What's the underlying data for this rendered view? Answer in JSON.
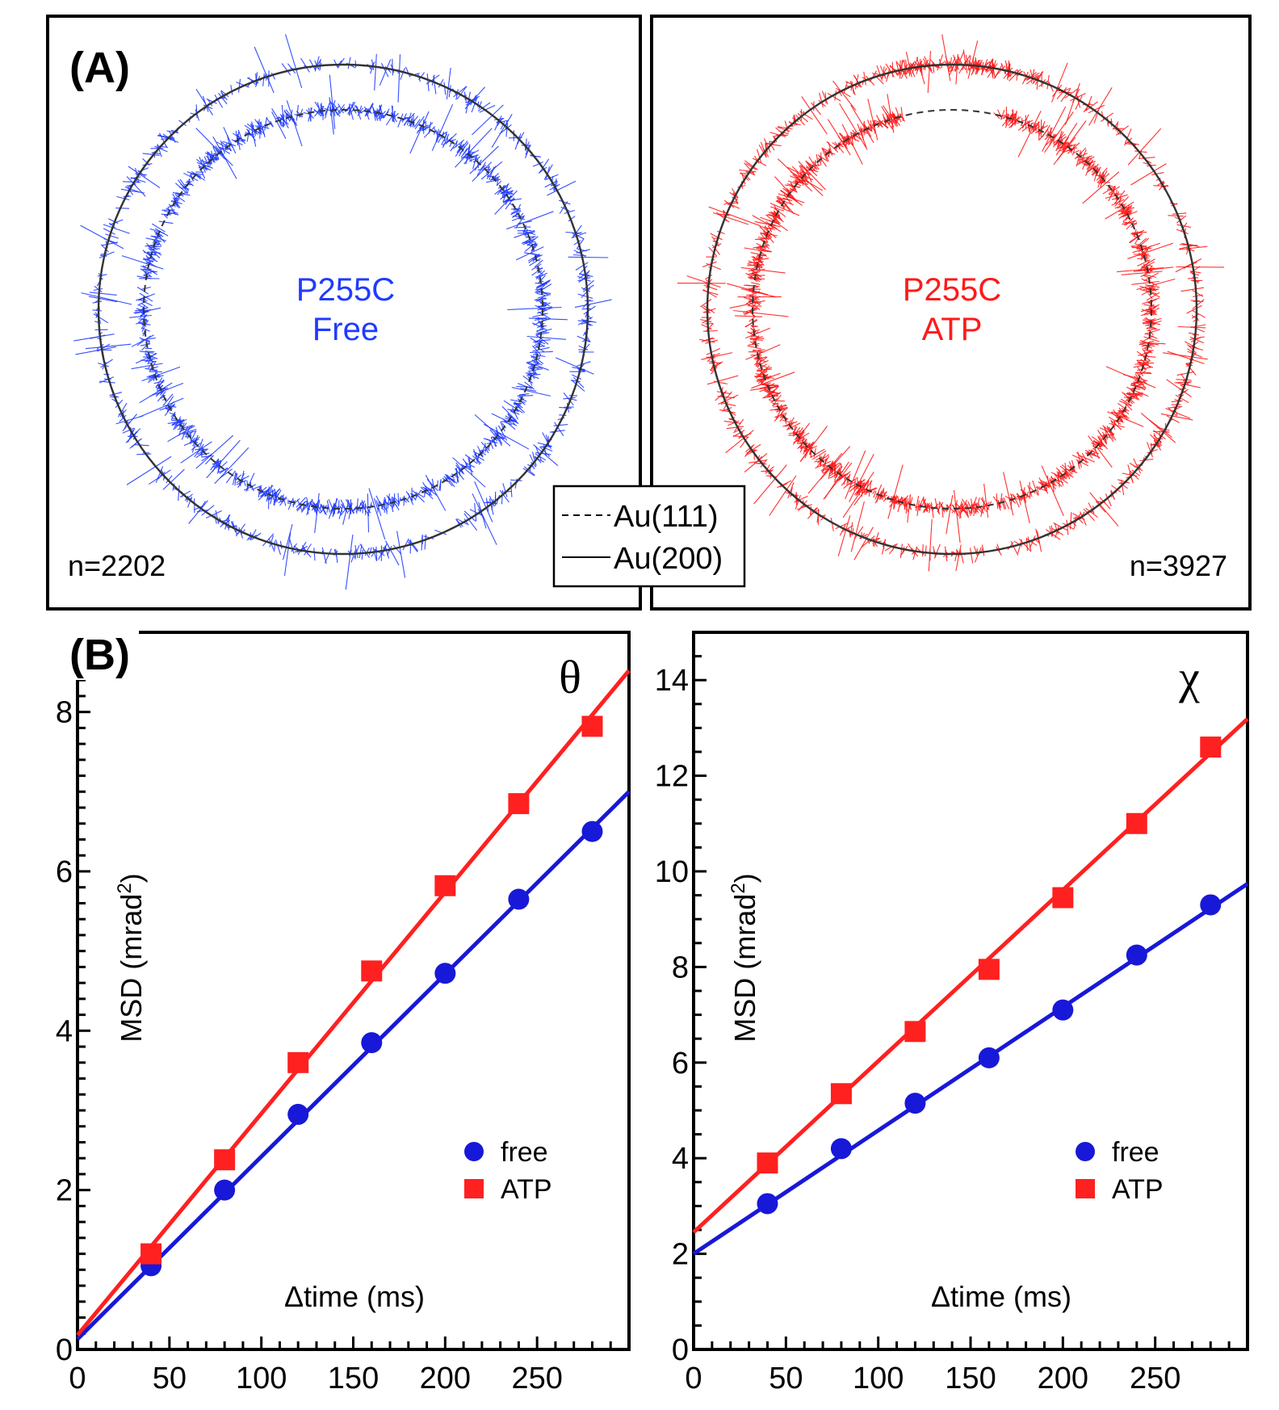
{
  "panel_labels": {
    "a": "(A)",
    "b": "(B)"
  },
  "colors": {
    "free": "#1f1fd0",
    "atp": "#ff1a1a",
    "fit_free": "#1818d8",
    "fit_atp": "#ff2020",
    "frame": "#000000",
    "reference": "#333333"
  },
  "panel_a": {
    "legend": {
      "dashed": "Au(111)",
      "solid": "Au(200)"
    },
    "left": {
      "name_line1": "P255C",
      "name_line2": "Free",
      "count": "n=2202",
      "color": "#1f3bff"
    },
    "right": {
      "name_line1": "P255C",
      "name_line2": "ATP",
      "count": "n=3927",
      "color": "#ff1a1a"
    }
  },
  "chart_data": [
    {
      "type": "scatter",
      "title": "θ",
      "xlabel": "Δtime (ms)",
      "ylabel": "MSD (mrad",
      "ylabel_sup": "2",
      "ylabel_close": ")",
      "xlim": [
        0,
        300
      ],
      "ylim": [
        0,
        9
      ],
      "xticks": [
        0,
        50,
        100,
        150,
        200,
        250
      ],
      "xtick_labels": [
        "0",
        "50",
        "100",
        "150",
        "200",
        "250"
      ],
      "yticks": [
        0,
        2,
        4,
        6,
        8
      ],
      "ytick_labels": [
        "0",
        "2",
        "4",
        "6",
        "8"
      ],
      "legend": [
        "free",
        "ATP"
      ],
      "series": [
        {
          "name": "free",
          "marker": "circle",
          "x": [
            40,
            80,
            120,
            160,
            200,
            240,
            280
          ],
          "y": [
            1.05,
            2.0,
            2.95,
            3.85,
            4.72,
            5.65,
            6.5
          ],
          "fit": {
            "slope": 0.0229,
            "intercept": 0.13
          }
        },
        {
          "name": "ATP",
          "marker": "square",
          "x": [
            40,
            80,
            120,
            160,
            200,
            240,
            280
          ],
          "y": [
            1.2,
            2.38,
            3.6,
            4.75,
            5.82,
            6.85,
            7.82
          ],
          "fit": {
            "slope": 0.0278,
            "intercept": 0.18
          }
        }
      ]
    },
    {
      "type": "scatter",
      "title": "χ",
      "xlabel": "Δtime (ms)",
      "ylabel": "MSD (mrad",
      "ylabel_sup": "2",
      "ylabel_close": ")",
      "xlim": [
        0,
        300
      ],
      "ylim": [
        0,
        15
      ],
      "xticks": [
        0,
        50,
        100,
        150,
        200,
        250
      ],
      "xtick_labels": [
        "0",
        "50",
        "100",
        "150",
        "200",
        "250"
      ],
      "yticks": [
        0,
        2,
        4,
        6,
        8,
        10,
        12,
        14
      ],
      "ytick_labels": [
        "0",
        "2",
        "4",
        "6",
        "8",
        "10",
        "12",
        "14"
      ],
      "legend": [
        "free",
        "ATP"
      ],
      "series": [
        {
          "name": "free",
          "marker": "circle",
          "x": [
            40,
            80,
            120,
            160,
            200,
            240,
            280
          ],
          "y": [
            3.05,
            4.2,
            5.15,
            6.1,
            7.1,
            8.25,
            9.3
          ],
          "fit": {
            "slope": 0.0258,
            "intercept": 2.0
          }
        },
        {
          "name": "ATP",
          "marker": "square",
          "x": [
            40,
            80,
            120,
            160,
            200,
            240,
            280
          ],
          "y": [
            3.9,
            5.35,
            6.65,
            7.95,
            9.45,
            11.0,
            12.6
          ],
          "fit": {
            "slope": 0.0358,
            "intercept": 2.45
          }
        }
      ]
    }
  ]
}
